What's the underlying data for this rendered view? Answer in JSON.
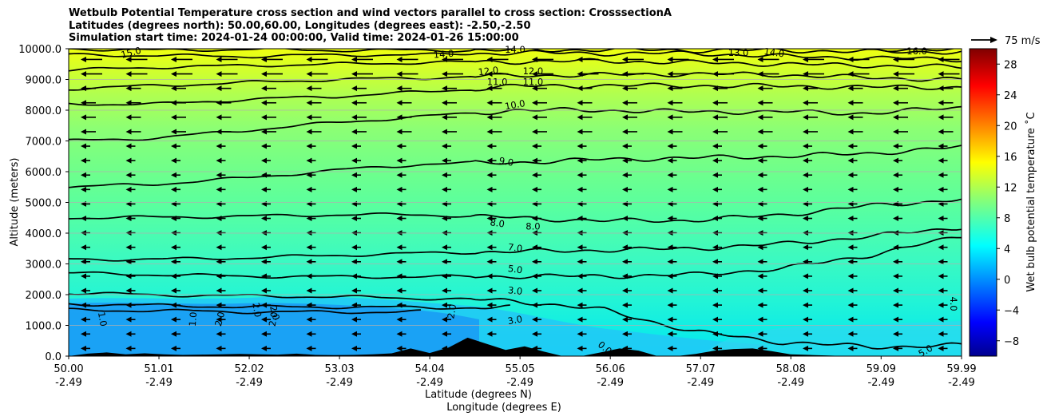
{
  "chart_data": {
    "type": "contourf",
    "title_lines": [
      "Wetbulb Potential Temperature cross section and wind vectors parallel to cross section: CrosssectionA",
      "Latitudes (degrees north): 50.00,60.00, Longitudes (degrees east): -2.50,-2.50",
      "Simulation start time: 2024-01-24 00:00:00, Valid time: 2024-01-26 15:00:00"
    ],
    "ylabel": "Altitude (meters)",
    "xlabel_lat": "Latitude (degrees N)",
    "xlabel_lon": "Longitude (degrees E)",
    "ylim": [
      0,
      10000
    ],
    "y_ticks": [
      "0.0",
      "1000.0",
      "2000.0",
      "3000.0",
      "4000.0",
      "5000.0",
      "6000.0",
      "7000.0",
      "8000.0",
      "9000.0",
      "10000.0"
    ],
    "y_tick_values": [
      0,
      1000,
      2000,
      3000,
      4000,
      5000,
      6000,
      7000,
      8000,
      9000,
      10000
    ],
    "xlim": [
      50.0,
      59.99
    ],
    "x_ticks": [
      {
        "lat": "50.00",
        "lon": "-2.49",
        "value": 50.0
      },
      {
        "lat": "51.01",
        "lon": "-2.49",
        "value": 51.01
      },
      {
        "lat": "52.02",
        "lon": "-2.49",
        "value": 52.02
      },
      {
        "lat": "53.03",
        "lon": "-2.49",
        "value": 53.03
      },
      {
        "lat": "54.04",
        "lon": "-2.49",
        "value": 54.04
      },
      {
        "lat": "55.05",
        "lon": "-2.49",
        "value": 55.05
      },
      {
        "lat": "56.06",
        "lon": "-2.49",
        "value": 56.06
      },
      {
        "lat": "57.07",
        "lon": "-2.49",
        "value": 57.07
      },
      {
        "lat": "58.08",
        "lon": "-2.49",
        "value": 58.08
      },
      {
        "lat": "59.09",
        "lon": "-2.49",
        "value": 59.09
      },
      {
        "lat": "59.99",
        "lon": "-2.49",
        "value": 59.99
      }
    ],
    "colorbar": {
      "label": "Wet bulb potential temperature ˚C",
      "range": [
        -10,
        30
      ],
      "ticks": [
        "−8",
        "−4",
        "0",
        "4",
        "8",
        "12",
        "16",
        "20",
        "24",
        "28"
      ],
      "tick_values": [
        -8,
        -4,
        0,
        4,
        8,
        12,
        16,
        20,
        24,
        28
      ],
      "colormap": "jet"
    },
    "quiver_key": "75 m/s",
    "contours": [
      {
        "label": "0.0",
        "value": 0.0,
        "base": [
          null,
          null,
          null,
          null,
          null,
          null,
          null,
          null,
          null,
          null,
          null
        ]
      },
      {
        "label": "1.0",
        "value": 1.0,
        "base": [
          1500,
          1480,
          1440,
          1430,
          1450,
          null,
          null,
          null,
          null,
          null,
          null
        ]
      },
      {
        "label": "2.0",
        "value": 2.0,
        "base": [
          1700,
          1650,
          1600,
          1600,
          1580,
          1580,
          null,
          null,
          null,
          null,
          null
        ]
      },
      {
        "label": "3.0",
        "value": 3.0,
        "base": [
          2050,
          1990,
          1960,
          1930,
          1880,
          1800,
          1500,
          800,
          450,
          300,
          350
        ]
      },
      {
        "label": "5.0",
        "value": 5.0,
        "base": [
          2700,
          2650,
          2600,
          2580,
          2580,
          2600,
          2600,
          2650,
          2850,
          3300,
          3900
        ]
      },
      {
        "label": "7.0",
        "value": 7.0,
        "base": [
          3150,
          3150,
          3200,
          3280,
          3350,
          3400,
          3450,
          3500,
          3650,
          3900,
          4200
        ]
      },
      {
        "label": "8.0",
        "value": 8.0,
        "base": [
          4500,
          4520,
          4550,
          4600,
          4600,
          4500,
          4400,
          4420,
          4600,
          4900,
          5100
        ]
      },
      {
        "label": "9.0",
        "value": 9.0,
        "base": [
          5500,
          5600,
          5800,
          6050,
          6250,
          6300,
          6400,
          6450,
          6500,
          6600,
          6800
        ]
      },
      {
        "label": "10.0",
        "value": 10.0,
        "base": [
          7000,
          7100,
          7350,
          7600,
          7800,
          8000,
          8000,
          7950,
          7950,
          7900,
          8100
        ]
      },
      {
        "label": "11.0",
        "value": 11.0,
        "base": [
          8200,
          8200,
          8350,
          8450,
          8600,
          8780,
          8800,
          8800,
          8780,
          8750,
          8750
        ]
      },
      {
        "label": "12.0",
        "value": 12.0,
        "base": [
          8700,
          8800,
          8900,
          9000,
          9050,
          9130,
          9150,
          9180,
          9150,
          9050,
          9000
        ]
      },
      {
        "label": "13.0",
        "value": 13.0,
        "base": [
          9300,
          9400,
          9450,
          9500,
          9550,
          9580,
          9600,
          9550,
          9500,
          9450,
          9400
        ]
      },
      {
        "label": "14.0",
        "value": 14.0,
        "base": [
          9800,
          9780,
          9750,
          9800,
          9800,
          9870,
          9850,
          9850,
          9750,
          9700,
          9650
        ]
      },
      {
        "label": "15.0",
        "value": 15.0,
        "base": [
          10000,
          9950,
          9980,
          9950,
          9950,
          9950,
          9970,
          9950,
          9950,
          9900,
          9900
        ]
      },
      {
        "label": "16.0",
        "value": 16.0,
        "base": [
          null,
          null,
          null,
          null,
          null,
          null,
          null,
          null,
          null,
          10000,
          9950
        ]
      }
    ],
    "terrain_m": [
      0,
      80,
      120,
      60,
      90,
      60,
      40,
      50,
      60,
      70,
      60,
      50,
      80,
      40,
      30,
      40,
      60,
      90,
      250,
      100,
      280,
      600,
      400,
      200,
      320,
      150,
      0,
      0,
      120,
      250,
      180,
      0,
      0,
      70,
      180,
      230,
      250,
      160,
      60,
      40,
      20,
      0,
      0,
      0,
      0,
      0,
      0,
      0
    ]
  }
}
